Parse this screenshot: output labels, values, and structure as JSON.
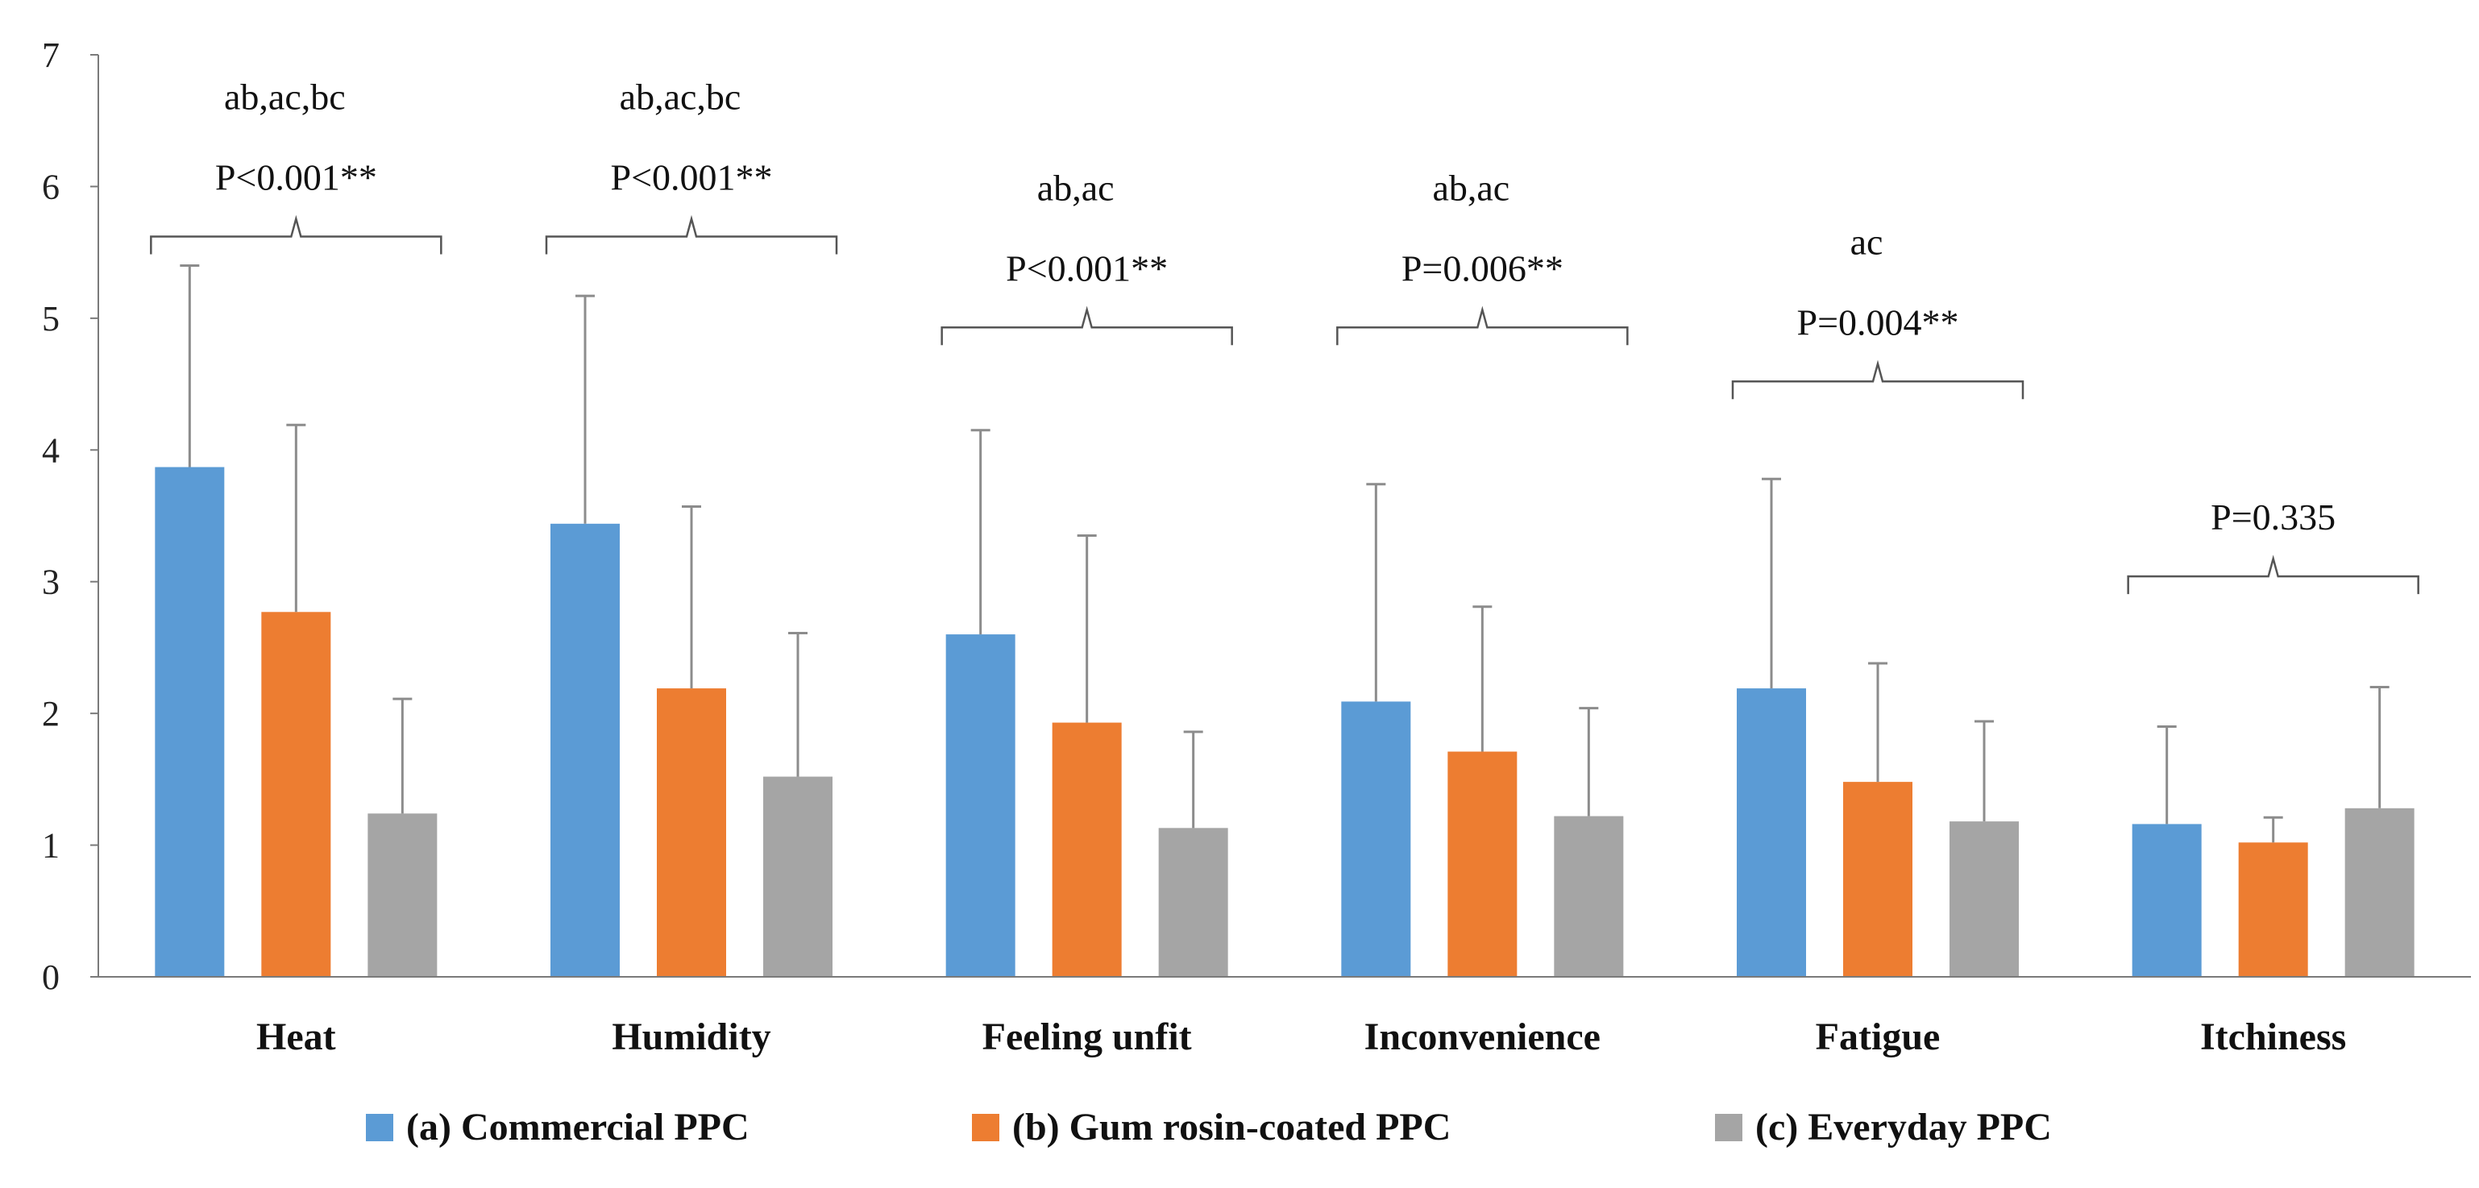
{
  "chart_data": {
    "type": "bar",
    "title": "",
    "xlabel": "",
    "ylabel": "",
    "ylim": [
      0,
      7
    ],
    "yticks": [
      0,
      1,
      2,
      3,
      4,
      5,
      6,
      7
    ],
    "grid": false,
    "legend_position": "bottom",
    "categories": [
      "Heat",
      "Humidity",
      "Feeling unfit",
      "Inconvenience",
      "Fatigue",
      "Itchiness"
    ],
    "series": [
      {
        "name": "(a) Commercial PPC",
        "color": "#5b9bd5",
        "values": [
          3.87,
          3.44,
          2.6,
          2.09,
          2.19,
          1.16
        ],
        "error_upper": [
          5.4,
          5.17,
          4.15,
          3.74,
          3.78,
          1.9
        ]
      },
      {
        "name": "(b) Gum rosin-coated PPC",
        "color": "#ed7d31",
        "values": [
          2.77,
          2.19,
          1.93,
          1.71,
          1.48,
          1.02
        ],
        "error_upper": [
          4.19,
          3.57,
          3.35,
          2.81,
          2.38,
          1.21
        ]
      },
      {
        "name": "(c) Everyday PPC",
        "color": "#a5a5a5",
        "values": [
          1.24,
          1.52,
          1.13,
          1.22,
          1.18,
          1.28
        ],
        "error_upper": [
          2.11,
          2.61,
          1.86,
          2.04,
          1.94,
          2.2
        ]
      }
    ],
    "annotations": [
      {
        "category": "Heat",
        "groups": "ab,ac,bc",
        "p": "P<0.001**",
        "brace_y": 5.62
      },
      {
        "category": "Humidity",
        "groups": "ab,ac,bc",
        "p": "P<0.001**",
        "brace_y": 5.62
      },
      {
        "category": "Feeling unfit",
        "groups": "ab,ac",
        "p": "P<0.001**",
        "brace_y": 4.93
      },
      {
        "category": "Inconvenience",
        "groups": "ab,ac",
        "p": "P=0.006**",
        "brace_y": 4.93
      },
      {
        "category": "Fatigue",
        "groups": "ac",
        "p": "P=0.004**",
        "brace_y": 4.52
      },
      {
        "category": "Itchiness",
        "groups": "",
        "p": "P=0.335",
        "brace_y": 3.04
      }
    ]
  }
}
